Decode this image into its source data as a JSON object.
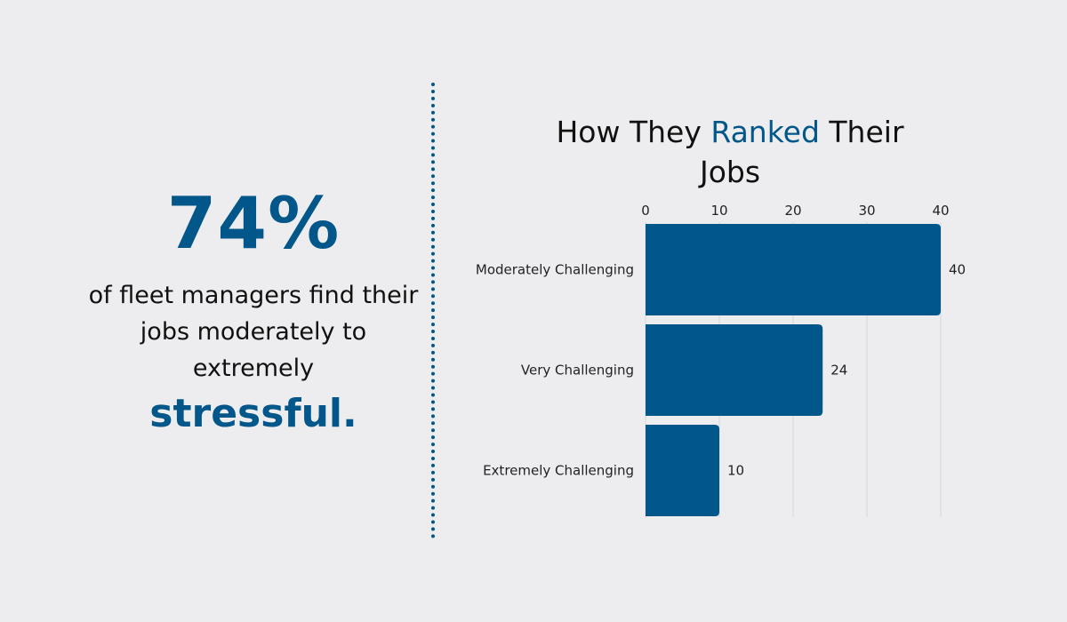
{
  "left": {
    "stat": "74%",
    "text": "of fleet managers find their jobs moderately to extremely",
    "emphasis": "stressful."
  },
  "chart_data": {
    "type": "bar",
    "orientation": "horizontal",
    "title_parts": [
      "How They ",
      "Ranked",
      " Their Jobs"
    ],
    "categories": [
      "Moderately Challenging",
      "Very Challenging",
      "Extremely Challenging"
    ],
    "values": [
      40,
      24,
      10
    ],
    "xlim": [
      0,
      40
    ],
    "xticks": [
      "0",
      "10",
      "20",
      "30",
      "40"
    ],
    "grid": true,
    "color": "#02578a"
  }
}
